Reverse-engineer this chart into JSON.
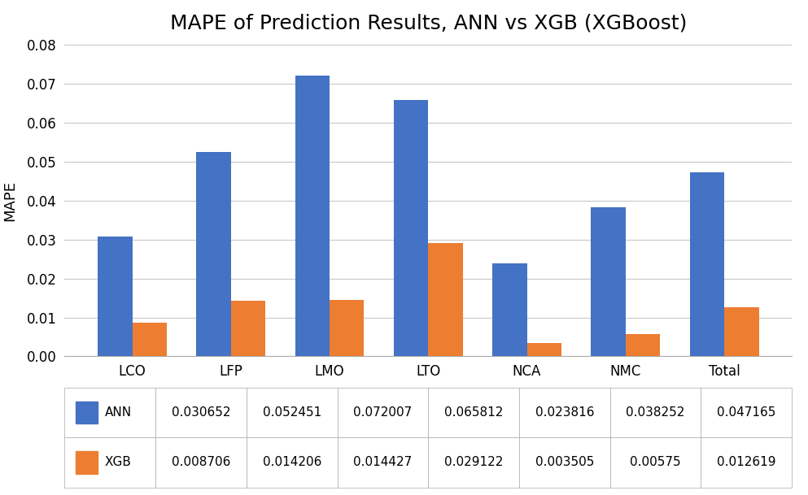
{
  "title": "MAPE of Prediction Results, ANN vs XGB (XGBoost)",
  "categories": [
    "LCO",
    "LFP",
    "LMO",
    "LTO",
    "NCA",
    "NMC",
    "Total"
  ],
  "ann_values": [
    0.030652,
    0.052451,
    0.072007,
    0.065812,
    0.023816,
    0.038252,
    0.047165
  ],
  "xgb_values": [
    0.008706,
    0.014206,
    0.014427,
    0.029122,
    0.003505,
    0.00575,
    0.012619
  ],
  "ann_color": "#4472C4",
  "xgb_color": "#ED7D31",
  "ylabel": "MAPE",
  "ylim": [
    0,
    0.08
  ],
  "yticks": [
    0,
    0.01,
    0.02,
    0.03,
    0.04,
    0.05,
    0.06,
    0.07,
    0.08
  ],
  "background_color": "#ffffff",
  "grid_color": "#c8c8c8",
  "title_fontsize": 18,
  "axis_fontsize": 13,
  "tick_fontsize": 12,
  "table_fontsize": 11,
  "bar_width": 0.35,
  "ann_label": "ANN",
  "xgb_label": "XGB",
  "ann_display": [
    "0.030652",
    "0.052451",
    "0.072007",
    "0.065812",
    "0.023816",
    "0.038252",
    "0.047165"
  ],
  "xgb_display": [
    "0.008706",
    "0.014206",
    "0.014427",
    "0.029122",
    "0.003505",
    "0.00575",
    "0.012619"
  ]
}
